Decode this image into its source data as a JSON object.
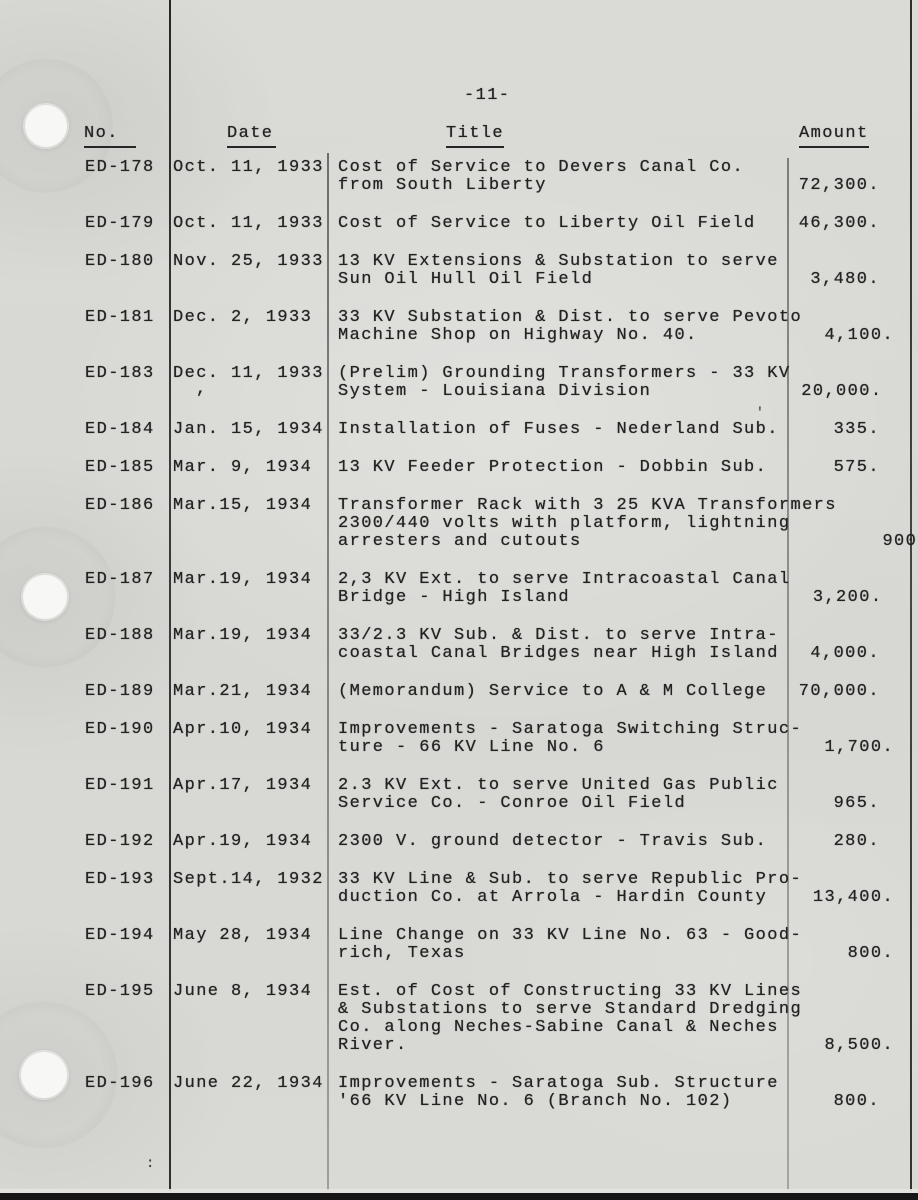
{
  "colors": {
    "paper": "#d8d8d4",
    "ink": "#222222",
    "rule_dark": "#2b2b2b",
    "rule_faint": "#7a7a78",
    "scan_bar": "#171717",
    "hole": "#f7f7f5"
  },
  "page": {
    "number": "-11-"
  },
  "table": {
    "headers": {
      "no": "No.",
      "date": "Date",
      "title": "Title",
      "amount": "Amount"
    },
    "rows": [
      {
        "no": "ED-178",
        "date": "Oct. 11, 1933",
        "title": "Cost of Service to Devers Canal Co.\nfrom South Liberty",
        "amount": "72,300."
      },
      {
        "no": "ED-179",
        "date": "Oct. 11, 1933",
        "title": "Cost of Service to Liberty Oil Field",
        "amount": "46,300."
      },
      {
        "no": "ED-180",
        "date": "Nov. 25, 1933",
        "title": "13 KV Extensions & Substation to serve\nSun Oil Hull Oil Field",
        "amount": "3,480."
      },
      {
        "no": "ED-181",
        "date": "Dec. 2, 1933",
        "title": "33 KV Substation & Dist. to serve Pevoto\nMachine Shop on Highway No. 40.",
        "amount": "4,100."
      },
      {
        "no": "ED-183",
        "date": "Dec. 11, 1933",
        "title": "(Prelim) Grounding Transformers - 33 KV\nSystem - Louisiana Division",
        "amount": "20,000."
      },
      {
        "no": "ED-184",
        "date": "Jan. 15, 1934",
        "title": "Installation of Fuses - Nederland Sub.",
        "amount": "335."
      },
      {
        "no": "ED-185",
        "date": "Mar. 9, 1934",
        "title": "13 KV Feeder Protection - Dobbin Sub.",
        "amount": "575."
      },
      {
        "no": "ED-186",
        "date": "Mar.15, 1934",
        "title": "Transformer Rack with 3 25 KVA Transformers\n2300/440 volts with platform, lightning\narresters and cutouts",
        "amount": "900."
      },
      {
        "no": "ED-187",
        "date": "Mar.19, 1934",
        "title": "2,3 KV Ext. to serve Intracoastal Canal\nBridge - High Island",
        "amount": "3,200."
      },
      {
        "no": "ED-188",
        "date": "Mar.19, 1934",
        "title": "33/2.3 KV Sub. & Dist. to serve Intra-\ncoastal Canal Bridges near High Island",
        "amount": "4,000."
      },
      {
        "no": "ED-189",
        "date": "Mar.21, 1934",
        "title": "(Memorandum) Service to A & M College",
        "amount": "70,000."
      },
      {
        "no": "ED-190",
        "date": "Apr.10, 1934",
        "title": "Improvements - Saratoga Switching Struc-\nture - 66 KV Line No. 6",
        "amount": "1,700."
      },
      {
        "no": "ED-191",
        "date": "Apr.17, 1934",
        "title": "2.3 KV Ext. to serve United Gas Public\nService Co. - Conroe Oil Field",
        "amount": "965."
      },
      {
        "no": "ED-192",
        "date": "Apr.19, 1934",
        "title": "2300 V. ground detector - Travis Sub.",
        "amount": "280."
      },
      {
        "no": "ED-193",
        "date": "Sept.14, 1932",
        "title": "33 KV Line & Sub. to serve Republic Pro-\nduction Co. at Arrola - Hardin County",
        "amount": "13,400."
      },
      {
        "no": "ED-194",
        "date": "May 28, 1934",
        "title": "Line Change on 33 KV Line No. 63 - Good-\nrich, Texas",
        "amount": "800."
      },
      {
        "no": "ED-195",
        "date": "June 8, 1934",
        "title": "Est. of Cost of Constructing 33 KV Lines\n& Substations to serve Standard Dredging\nCo. along Neches-Sabine Canal & Neches\nRiver.",
        "amount": "8,500."
      },
      {
        "no": "ED-196",
        "date": "June 22, 1934",
        "title": "Improvements - Saratoga Sub. Structure\n'66 KV Line No. 6 (Branch No. 102)",
        "amount": "800."
      }
    ]
  },
  "artifacts": {
    "stray_comma": ",",
    "stray_tick": "'",
    "stray_colon": ":"
  }
}
